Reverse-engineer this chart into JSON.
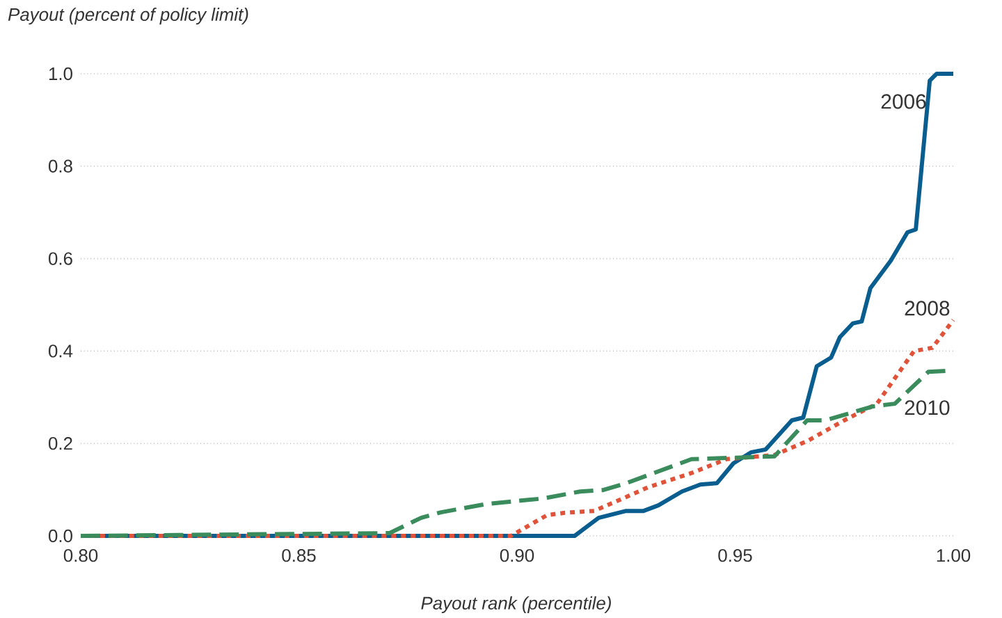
{
  "chart_data": {
    "type": "line",
    "xlabel": "Payout rank (percentile)",
    "ylabel": "Payout (percent of policy limit)",
    "xlim": [
      0.8,
      1.0
    ],
    "ylim": [
      0,
      1
    ],
    "xticks": [
      {
        "value": 0.8,
        "label": "0.80"
      },
      {
        "value": 0.85,
        "label": "0.85"
      },
      {
        "value": 0.9,
        "label": "0.90"
      },
      {
        "value": 0.95,
        "label": "0.95"
      },
      {
        "value": 1.0,
        "label": "1.00"
      }
    ],
    "yticks": [
      {
        "value": 0,
        "label": "0.0"
      },
      {
        "value": 0.2,
        "label": "0.2"
      },
      {
        "value": 0.4,
        "label": "0.4"
      },
      {
        "value": 0.6,
        "label": "0.6"
      },
      {
        "value": 0.8,
        "label": "0.8"
      },
      {
        "value": 1.0,
        "label": "1.0"
      }
    ],
    "grid": "y",
    "series": [
      {
        "name": "2006",
        "color": "#0a5e8f",
        "line_style": "solid",
        "x": [
          0.8,
          0.9132,
          0.9187,
          0.925,
          0.929,
          0.9324,
          0.9378,
          0.942,
          0.9458,
          0.9496,
          0.9537,
          0.957,
          0.963,
          0.9656,
          0.9687,
          0.972,
          0.974,
          0.977,
          0.979,
          0.981,
          0.9857,
          0.9895,
          0.9914,
          0.9946,
          0.9962,
          1.0
        ],
        "values": [
          0,
          0,
          0.039,
          0.054,
          0.054,
          0.066,
          0.096,
          0.111,
          0.114,
          0.157,
          0.181,
          0.187,
          0.25,
          0.256,
          0.367,
          0.386,
          0.43,
          0.46,
          0.464,
          0.536,
          0.596,
          0.657,
          0.663,
          0.985,
          1.0,
          1.0
        ]
      },
      {
        "name": "2008",
        "color": "#e0533a",
        "line_style": "dotted",
        "x": [
          0.8,
          0.8986,
          0.9069,
          0.911,
          0.9177,
          0.925,
          0.93,
          0.94,
          0.948,
          0.959,
          0.9665,
          0.975,
          0.9825,
          0.991,
          0.9952,
          1.0
        ],
        "values": [
          0,
          0,
          0.045,
          0.05,
          0.054,
          0.084,
          0.105,
          0.136,
          0.166,
          0.175,
          0.205,
          0.25,
          0.286,
          0.4,
          0.407,
          0.467
        ]
      },
      {
        "name": "2010",
        "color": "#3b8c5c",
        "line_style": "dashed",
        "x": [
          0.8,
          0.8708,
          0.878,
          0.8826,
          0.893,
          0.906,
          0.9145,
          0.9196,
          0.925,
          0.94,
          0.959,
          0.9665,
          0.9707,
          0.9815,
          0.9866,
          0.9943,
          1.0
        ],
        "values": [
          0,
          0.006,
          0.039,
          0.051,
          0.069,
          0.081,
          0.096,
          0.099,
          0.114,
          0.166,
          0.172,
          0.25,
          0.25,
          0.28,
          0.286,
          0.355,
          0.358
        ]
      }
    ]
  }
}
